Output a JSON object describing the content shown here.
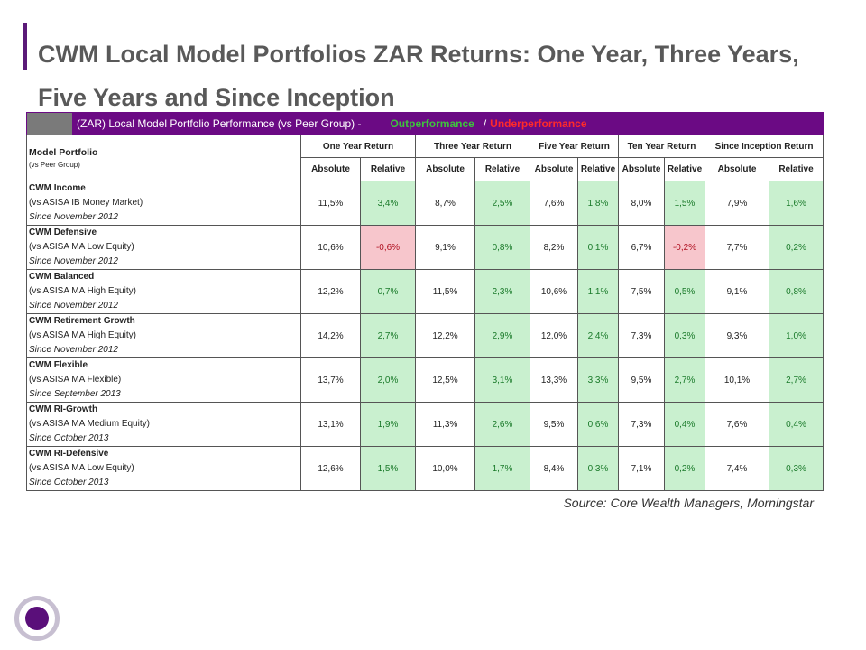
{
  "title": "CWM Local Model Portfolios ZAR Returns: One Year, Three Years, Five Years and Since Inception",
  "table": {
    "header_text": "(ZAR) Local Model Portfolio Performance (vs Peer Group) -",
    "outperformance": "Outperformance",
    "separator": "/",
    "underperformance": "Underperformance",
    "model_portfolio": "Model Portfolio",
    "vs_peer_group": "(vs Peer Group)",
    "groups": [
      "One Year Return",
      "Three Year Return",
      "Five Year Return",
      "Ten Year Return",
      "Since Inception Return"
    ],
    "absolute": "Absolute",
    "relative": "Relative",
    "rows": [
      {
        "name": "CWM Income",
        "bench": "(vs ASISA IB Money Market)",
        "since": "Since November 2012",
        "v": [
          "11,5%",
          "3,4%",
          "8,7%",
          "2,5%",
          "7,6%",
          "1,8%",
          "8,0%",
          "1,5%",
          "7,9%",
          "1,6%"
        ]
      },
      {
        "name": "CWM Defensive",
        "bench": "(vs ASISA MA Low Equity)",
        "since": "Since November 2012",
        "v": [
          "10,6%",
          "-0,6%",
          "9,1%",
          "0,8%",
          "8,2%",
          "0,1%",
          "6,7%",
          "-0,2%",
          "7,7%",
          "0,2%"
        ]
      },
      {
        "name": "CWM Balanced",
        "bench": "(vs ASISA MA High Equity)",
        "since": "Since November 2012",
        "v": [
          "12,2%",
          "0,7%",
          "11,5%",
          "2,3%",
          "10,6%",
          "1,1%",
          "7,5%",
          "0,5%",
          "9,1%",
          "0,8%"
        ]
      },
      {
        "name": "CWM Retirement Growth",
        "bench": "(vs ASISA MA High Equity)",
        "since": "Since November 2012",
        "v": [
          "14,2%",
          "2,7%",
          "12,2%",
          "2,9%",
          "12,0%",
          "2,4%",
          "7,3%",
          "0,3%",
          "9,3%",
          "1,0%"
        ]
      },
      {
        "name": "CWM Flexible",
        "bench": "(vs ASISA MA Flexible)",
        "since": "Since September 2013",
        "v": [
          "13,7%",
          "2,0%",
          "12,5%",
          "3,1%",
          "13,3%",
          "3,3%",
          "9,5%",
          "2,7%",
          "10,1%",
          "2,7%"
        ]
      },
      {
        "name": "CWM RI-Growth",
        "bench": "(vs ASISA MA Medium Equity)",
        "since": "Since October 2013",
        "v": [
          "13,1%",
          "1,9%",
          "11,3%",
          "2,6%",
          "9,5%",
          "0,6%",
          "7,3%",
          "0,4%",
          "7,6%",
          "0,4%"
        ]
      },
      {
        "name": "CWM RI-Defensive",
        "bench": "(vs ASISA MA Low Equity)",
        "since": "Since October 2013",
        "v": [
          "12,6%",
          "1,5%",
          "10,0%",
          "1,7%",
          "8,4%",
          "0,3%",
          "7,1%",
          "0,2%",
          "7,4%",
          "0,3%"
        ]
      }
    ]
  },
  "source": "Source: Core Wealth Managers, Morningstar",
  "colors": {
    "accent": "#5b1a78",
    "header_bar": "#6b0a84",
    "outperformance": "#3ec23e",
    "underperformance": "#ff2a2a",
    "positive_cell": "#c9f0cf",
    "negative_cell": "#f7c6cc"
  }
}
